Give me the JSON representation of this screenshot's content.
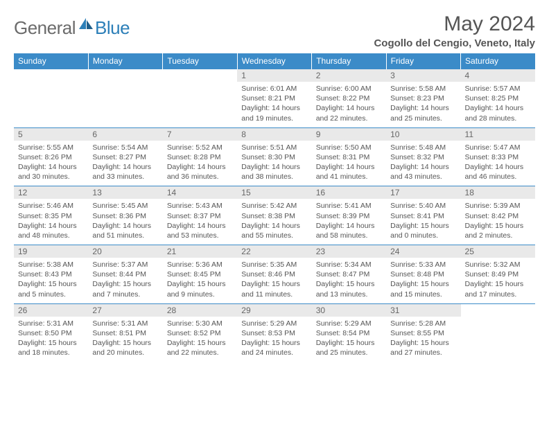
{
  "logo": {
    "general": "General",
    "blue": "Blue"
  },
  "title": "May 2024",
  "location": "Cogollo del Cengio, Veneto, Italy",
  "colors": {
    "header_bg": "#3b8bc8",
    "header_text": "#ffffff",
    "daynum_bg": "#e9e9e9",
    "border": "#3b8bc8",
    "logo_gray": "#6b6b6b",
    "logo_blue": "#2c7fb8"
  },
  "dayHeaders": [
    "Sunday",
    "Monday",
    "Tuesday",
    "Wednesday",
    "Thursday",
    "Friday",
    "Saturday"
  ],
  "weeks": [
    [
      null,
      null,
      null,
      {
        "n": "1",
        "sr": "6:01 AM",
        "ss": "8:21 PM",
        "dl": "14 hours and 19 minutes."
      },
      {
        "n": "2",
        "sr": "6:00 AM",
        "ss": "8:22 PM",
        "dl": "14 hours and 22 minutes."
      },
      {
        "n": "3",
        "sr": "5:58 AM",
        "ss": "8:23 PM",
        "dl": "14 hours and 25 minutes."
      },
      {
        "n": "4",
        "sr": "5:57 AM",
        "ss": "8:25 PM",
        "dl": "14 hours and 28 minutes."
      }
    ],
    [
      {
        "n": "5",
        "sr": "5:55 AM",
        "ss": "8:26 PM",
        "dl": "14 hours and 30 minutes."
      },
      {
        "n": "6",
        "sr": "5:54 AM",
        "ss": "8:27 PM",
        "dl": "14 hours and 33 minutes."
      },
      {
        "n": "7",
        "sr": "5:52 AM",
        "ss": "8:28 PM",
        "dl": "14 hours and 36 minutes."
      },
      {
        "n": "8",
        "sr": "5:51 AM",
        "ss": "8:30 PM",
        "dl": "14 hours and 38 minutes."
      },
      {
        "n": "9",
        "sr": "5:50 AM",
        "ss": "8:31 PM",
        "dl": "14 hours and 41 minutes."
      },
      {
        "n": "10",
        "sr": "5:48 AM",
        "ss": "8:32 PM",
        "dl": "14 hours and 43 minutes."
      },
      {
        "n": "11",
        "sr": "5:47 AM",
        "ss": "8:33 PM",
        "dl": "14 hours and 46 minutes."
      }
    ],
    [
      {
        "n": "12",
        "sr": "5:46 AM",
        "ss": "8:35 PM",
        "dl": "14 hours and 48 minutes."
      },
      {
        "n": "13",
        "sr": "5:45 AM",
        "ss": "8:36 PM",
        "dl": "14 hours and 51 minutes."
      },
      {
        "n": "14",
        "sr": "5:43 AM",
        "ss": "8:37 PM",
        "dl": "14 hours and 53 minutes."
      },
      {
        "n": "15",
        "sr": "5:42 AM",
        "ss": "8:38 PM",
        "dl": "14 hours and 55 minutes."
      },
      {
        "n": "16",
        "sr": "5:41 AM",
        "ss": "8:39 PM",
        "dl": "14 hours and 58 minutes."
      },
      {
        "n": "17",
        "sr": "5:40 AM",
        "ss": "8:41 PM",
        "dl": "15 hours and 0 minutes."
      },
      {
        "n": "18",
        "sr": "5:39 AM",
        "ss": "8:42 PM",
        "dl": "15 hours and 2 minutes."
      }
    ],
    [
      {
        "n": "19",
        "sr": "5:38 AM",
        "ss": "8:43 PM",
        "dl": "15 hours and 5 minutes."
      },
      {
        "n": "20",
        "sr": "5:37 AM",
        "ss": "8:44 PM",
        "dl": "15 hours and 7 minutes."
      },
      {
        "n": "21",
        "sr": "5:36 AM",
        "ss": "8:45 PM",
        "dl": "15 hours and 9 minutes."
      },
      {
        "n": "22",
        "sr": "5:35 AM",
        "ss": "8:46 PM",
        "dl": "15 hours and 11 minutes."
      },
      {
        "n": "23",
        "sr": "5:34 AM",
        "ss": "8:47 PM",
        "dl": "15 hours and 13 minutes."
      },
      {
        "n": "24",
        "sr": "5:33 AM",
        "ss": "8:48 PM",
        "dl": "15 hours and 15 minutes."
      },
      {
        "n": "25",
        "sr": "5:32 AM",
        "ss": "8:49 PM",
        "dl": "15 hours and 17 minutes."
      }
    ],
    [
      {
        "n": "26",
        "sr": "5:31 AM",
        "ss": "8:50 PM",
        "dl": "15 hours and 18 minutes."
      },
      {
        "n": "27",
        "sr": "5:31 AM",
        "ss": "8:51 PM",
        "dl": "15 hours and 20 minutes."
      },
      {
        "n": "28",
        "sr": "5:30 AM",
        "ss": "8:52 PM",
        "dl": "15 hours and 22 minutes."
      },
      {
        "n": "29",
        "sr": "5:29 AM",
        "ss": "8:53 PM",
        "dl": "15 hours and 24 minutes."
      },
      {
        "n": "30",
        "sr": "5:29 AM",
        "ss": "8:54 PM",
        "dl": "15 hours and 25 minutes."
      },
      {
        "n": "31",
        "sr": "5:28 AM",
        "ss": "8:55 PM",
        "dl": "15 hours and 27 minutes."
      },
      null
    ]
  ],
  "labels": {
    "sunrise": "Sunrise: ",
    "sunset": "Sunset: ",
    "daylight": "Daylight: "
  }
}
